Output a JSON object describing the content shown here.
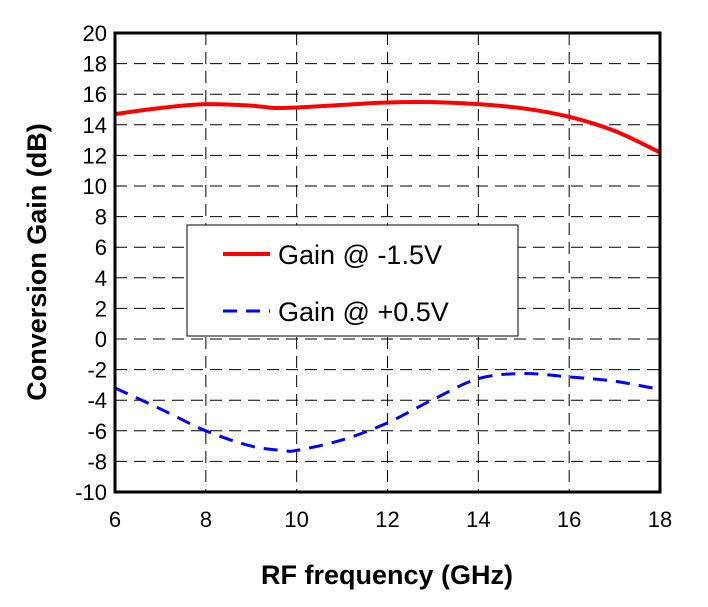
{
  "chart_data": {
    "type": "line",
    "title": "",
    "xlabel": "RF frequency (GHz)",
    "ylabel": "Conversion Gain (dB)",
    "xlim": [
      6,
      18
    ],
    "ylim": [
      -10,
      20
    ],
    "xticks": [
      "6",
      "8",
      "10",
      "12",
      "14",
      "16",
      "18"
    ],
    "yticks": [
      "-10",
      "-8",
      "-6",
      "-4",
      "-2",
      "0",
      "2",
      "4",
      "6",
      "8",
      "10",
      "12",
      "14",
      "16",
      "18",
      "20"
    ],
    "grid": true,
    "legend_position": "center-left",
    "series": [
      {
        "name": "Gain @ -1.5V",
        "color": "#ff0000",
        "style": "solid",
        "x": [
          6,
          7,
          8,
          9,
          9.5,
          10,
          11,
          12,
          13,
          14,
          15,
          16,
          17,
          18
        ],
        "y": [
          14.7,
          15.1,
          15.35,
          15.25,
          15.1,
          15.13,
          15.3,
          15.46,
          15.48,
          15.35,
          15.07,
          14.52,
          13.6,
          12.2
        ]
      },
      {
        "name": "Gain @ +0.5V",
        "color": "#0000ff",
        "style": "dashed",
        "x": [
          6,
          7,
          8,
          9,
          9.7,
          10,
          11,
          12,
          13,
          14,
          15,
          16,
          17,
          18
        ],
        "y": [
          -3.2,
          -4.57,
          -6.0,
          -7.0,
          -7.28,
          -7.28,
          -6.6,
          -5.48,
          -3.96,
          -2.59,
          -2.26,
          -2.48,
          -2.76,
          -3.3
        ]
      }
    ]
  }
}
